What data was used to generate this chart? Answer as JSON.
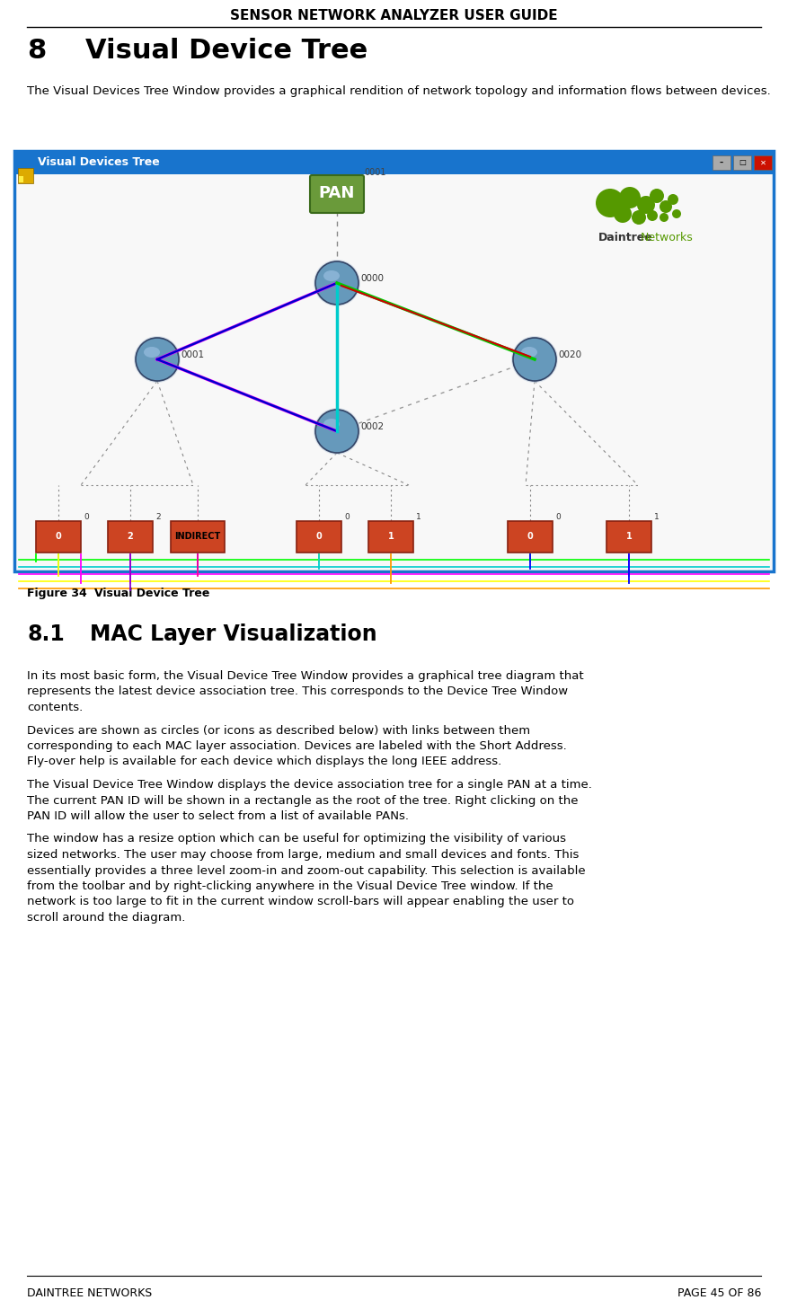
{
  "header_text": "SENSOR NETWORK ANALYZER USER GUIDE",
  "footer_left": "DAINTREE NETWORKS",
  "footer_right": "PAGE 45 OF 86",
  "section_number": "8",
  "section_title": "Visual Device Tree",
  "section_intro": "The Visual Devices Tree Window provides a graphical rendition of network topology and information flows between devices.",
  "figure_label": "Figure 34",
  "figure_caption": "Visual Device Tree",
  "subsection_number": "8.1",
  "subsection_title": "MAC Layer Visualization",
  "body_paragraphs": [
    "In its most basic form, the Visual Device Tree Window provides a graphical tree diagram that represents the latest device association tree. This corresponds to the Device Tree Window contents.",
    "Devices are shown as circles (or icons as described below) with links between them corresponding to each MAC layer association. Devices are labeled with the Short Address. Fly-over help is available for each device which displays the long IEEE address.",
    "The Visual Device Tree Window displays the device association tree for a single PAN at a time. The current PAN ID will be shown in a rectangle as the root of the tree. Right clicking on the PAN ID will allow the user to select from a list of available PANs.",
    "The window has a resize option which can be useful for optimizing the visibility of various sized networks. The user may choose from large, medium and small devices and fonts.  This essentially provides a three level zoom-in and zoom-out capability. This selection is available from the toolbar and by right-clicking anywhere in the Visual Device Tree window. If the network is too large to fit in the current window scroll-bars will appear enabling the user to scroll around the diagram."
  ],
  "bg_color": "#ffffff",
  "titlebar_color": "#1874CD",
  "window_bg_color": "#f8f8f8",
  "window_title": "Visual Devices Tree",
  "node_fill": "#5588bb",
  "node_edge": "#224477",
  "pan_fill": "#6a9a3a",
  "pan_edge": "#3a6a1a",
  "device_fill": "#cc4422",
  "device_edge": "#882211",
  "indirect_fill": "#cc5522",
  "indirect_edge": "#882211"
}
